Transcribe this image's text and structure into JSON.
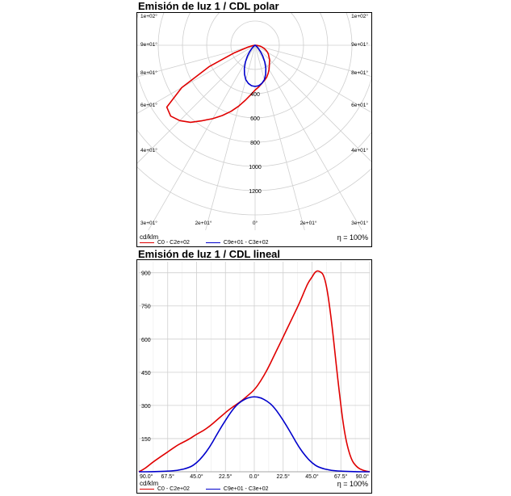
{
  "colors": {
    "c0": "#e00000",
    "c90": "#0000cc",
    "grid": "#cfcfcf"
  },
  "polar": {
    "title": "Emisión de luz 1 / CDL polar",
    "unit": "cd/klm",
    "eta": "η = 100%",
    "legend": [
      "C0 - C2e+02",
      "C9e+01 - C3e+02"
    ]
  },
  "linear": {
    "title": "Emisión de luz 1 / CDL lineal",
    "unit": "cd/klm",
    "eta": "η = 100%",
    "legend": [
      "C0 - C2e+02",
      "C9e+01 - C3e+02"
    ]
  },
  "chart_data": [
    {
      "type": "polar",
      "r_ticks": [
        "400",
        "600",
        "800",
        "1000",
        "1200"
      ],
      "r_tick_values": [
        400,
        600,
        800,
        1000,
        1200
      ],
      "r_max": 1400,
      "angle_labels_left": [
        "1e+02°",
        "9e+01°",
        "8e+01°",
        "6e+01°",
        "4e+01°",
        "3e+01°"
      ],
      "angle_labels_right": [
        "1e+02°",
        "9e+01°",
        "8e+01°",
        "6e+01°",
        "4e+01°",
        "3e+01°"
      ],
      "angle_labels_bottom": [
        "2e+01°",
        "0°",
        "2e+01°"
      ],
      "series": [
        {
          "name": "C0 - C2e+02",
          "points": [
            [
              -90,
              0
            ],
            [
              -85,
              15
            ],
            [
              -80,
              40
            ],
            [
              -75,
              60
            ],
            [
              -70,
              80
            ],
            [
              -65,
              100
            ],
            [
              -60,
              120
            ],
            [
              -55,
              135
            ],
            [
              -50,
              150
            ],
            [
              -45,
              170
            ],
            [
              -40,
              185
            ],
            [
              -35,
              205
            ],
            [
              -30,
              230
            ],
            [
              -25,
              255
            ],
            [
              -20,
              280
            ],
            [
              -15,
              300
            ],
            [
              -10,
              320
            ],
            [
              -5,
              345
            ],
            [
              0,
              370
            ],
            [
              5,
              410
            ],
            [
              10,
              460
            ],
            [
              15,
              520
            ],
            [
              20,
              580
            ],
            [
              25,
              640
            ],
            [
              30,
              700
            ],
            [
              35,
              760
            ],
            [
              40,
              830
            ],
            [
              45,
              880
            ],
            [
              50,
              910
            ],
            [
              55,
              890
            ],
            [
              60,
              700
            ],
            [
              65,
              420
            ],
            [
              70,
              180
            ],
            [
              75,
              60
            ],
            [
              80,
              20
            ],
            [
              85,
              5
            ],
            [
              90,
              0
            ]
          ]
        },
        {
          "name": "C9e+01 - C3e+02",
          "points": [
            [
              -90,
              0
            ],
            [
              -80,
              0
            ],
            [
              -70,
              2
            ],
            [
              -60,
              5
            ],
            [
              -50,
              20
            ],
            [
              -45,
              40
            ],
            [
              -40,
              70
            ],
            [
              -35,
              110
            ],
            [
              -30,
              160
            ],
            [
              -25,
              210
            ],
            [
              -20,
              255
            ],
            [
              -15,
              295
            ],
            [
              -10,
              320
            ],
            [
              -5,
              335
            ],
            [
              0,
              340
            ],
            [
              5,
              335
            ],
            [
              10,
              320
            ],
            [
              15,
              295
            ],
            [
              20,
              255
            ],
            [
              25,
              210
            ],
            [
              30,
              160
            ],
            [
              35,
              110
            ],
            [
              40,
              70
            ],
            [
              45,
              40
            ],
            [
              50,
              20
            ],
            [
              60,
              5
            ],
            [
              70,
              2
            ],
            [
              80,
              0
            ],
            [
              90,
              0
            ]
          ]
        }
      ]
    },
    {
      "type": "line",
      "x_tick_labels": [
        "90.0°",
        "67.5°",
        "45.0°",
        "22.5°",
        "0.0°",
        "22.5°",
        "45.0°",
        "67.5°",
        "90.0°"
      ],
      "x_tick_values": [
        -90,
        -67.5,
        -45,
        -22.5,
        0,
        22.5,
        45,
        67.5,
        90
      ],
      "y_ticks": [
        150,
        300,
        450,
        600,
        750,
        900
      ],
      "xlim": [
        -90,
        90
      ],
      "ylim": [
        0,
        950
      ],
      "grid": true,
      "series": [
        {
          "name": "C0 - C2e+02",
          "x": [
            -90,
            -85,
            -80,
            -75,
            -70,
            -65,
            -60,
            -55,
            -50,
            -45,
            -40,
            -35,
            -30,
            -25,
            -20,
            -15,
            -10,
            -5,
            0,
            5,
            10,
            15,
            20,
            25,
            30,
            35,
            40,
            42.5,
            45,
            47.5,
            50,
            55,
            60,
            65,
            70,
            75,
            80,
            85,
            90
          ],
          "y": [
            0,
            15,
            40,
            60,
            80,
            100,
            120,
            135,
            150,
            170,
            185,
            205,
            230,
            255,
            280,
            300,
            320,
            345,
            370,
            410,
            460,
            520,
            580,
            640,
            700,
            760,
            830,
            860,
            880,
            905,
            910,
            890,
            700,
            420,
            180,
            60,
            20,
            5,
            0
          ]
        },
        {
          "name": "C9e+01 - C3e+02",
          "x": [
            -90,
            -80,
            -70,
            -60,
            -50,
            -45,
            -40,
            -35,
            -30,
            -25,
            -20,
            -15,
            -10,
            -5,
            0,
            5,
            10,
            15,
            20,
            25,
            30,
            35,
            40,
            45,
            50,
            60,
            70,
            80,
            90
          ],
          "y": [
            0,
            0,
            2,
            5,
            20,
            40,
            70,
            110,
            160,
            210,
            255,
            295,
            320,
            335,
            340,
            335,
            320,
            295,
            255,
            210,
            160,
            110,
            70,
            40,
            20,
            5,
            2,
            0,
            0
          ]
        }
      ]
    }
  ]
}
